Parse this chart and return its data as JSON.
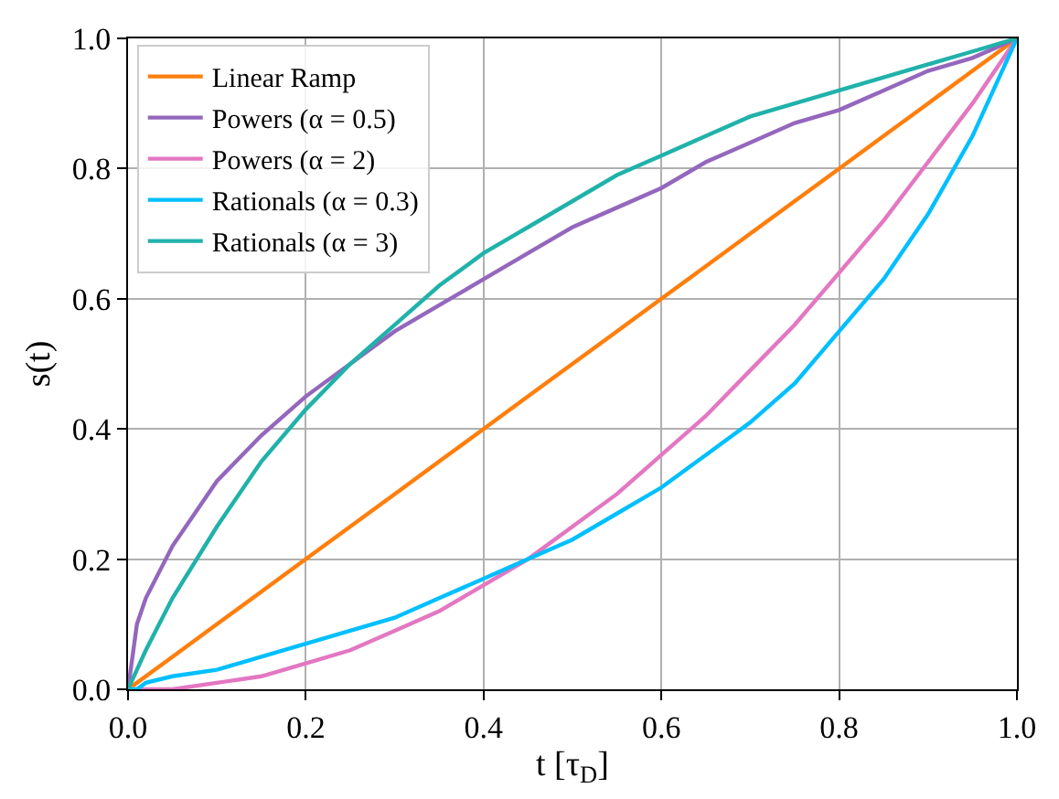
{
  "chart_data": {
    "type": "line",
    "xlabel": "t [τ$_{D}$]",
    "ylabel": "s(t)",
    "x": [
      0,
      0.01,
      0.02,
      0.05,
      0.1,
      0.15,
      0.2,
      0.25,
      0.3,
      0.35,
      0.4,
      0.45,
      0.5,
      0.55,
      0.6,
      0.65,
      0.7,
      0.75,
      0.8,
      0.85,
      0.9,
      0.95,
      1
    ],
    "series": [
      {
        "name": "Linear Ramp",
        "color": "#ff7f0e",
        "values": [
          0,
          0.01,
          0.02,
          0.05,
          0.1,
          0.15,
          0.2,
          0.25,
          0.3,
          0.35,
          0.4,
          0.45,
          0.5,
          0.55,
          0.6,
          0.65,
          0.7,
          0.75,
          0.8,
          0.85,
          0.9,
          0.95,
          1
        ]
      },
      {
        "name": "Powers (α = 0.5)",
        "color": "#9467bd",
        "values": [
          0,
          0.1,
          0.14,
          0.22,
          0.32,
          0.39,
          0.45,
          0.5,
          0.55,
          0.59,
          0.63,
          0.67,
          0.71,
          0.74,
          0.77,
          0.81,
          0.84,
          0.87,
          0.89,
          0.92,
          0.95,
          0.97,
          1
        ]
      },
      {
        "name": "Powers (α = 2)",
        "color": "#e377c2",
        "values": [
          0,
          0,
          0,
          0,
          0.01,
          0.02,
          0.04,
          0.06,
          0.09,
          0.12,
          0.16,
          0.2,
          0.25,
          0.3,
          0.36,
          0.42,
          0.49,
          0.56,
          0.64,
          0.72,
          0.81,
          0.9,
          1
        ]
      },
      {
        "name": "Rationals (α = 0.3)",
        "color": "#00bfff",
        "values": [
          0,
          0,
          0.01,
          0.02,
          0.03,
          0.05,
          0.07,
          0.09,
          0.11,
          0.14,
          0.17,
          0.2,
          0.23,
          0.27,
          0.31,
          0.36,
          0.41,
          0.47,
          0.55,
          0.63,
          0.73,
          0.85,
          1
        ]
      },
      {
        "name": "Rationals (α = 3)",
        "color": "#20b2aa",
        "values": [
          0,
          0.03,
          0.06,
          0.14,
          0.25,
          0.35,
          0.43,
          0.5,
          0.56,
          0.62,
          0.67,
          0.71,
          0.75,
          0.79,
          0.82,
          0.85,
          0.88,
          0.9,
          0.92,
          0.94,
          0.96,
          0.98,
          1
        ]
      }
    ],
    "xlim": [
      0,
      1
    ],
    "ylim": [
      0,
      1
    ],
    "xticks": [
      {
        "value": 0,
        "label": "0.0"
      },
      0.2,
      0.4,
      0.6,
      0.8,
      {
        "value": 1,
        "label": "1.0"
      }
    ],
    "yticks": [
      {
        "value": 0,
        "label": "0.0"
      },
      0.2,
      0.4,
      0.6,
      0.8,
      {
        "value": 1,
        "label": "1.0"
      }
    ],
    "grid": true,
    "legend": "top left",
    "marker": "none",
    "line_style": "solid"
  }
}
